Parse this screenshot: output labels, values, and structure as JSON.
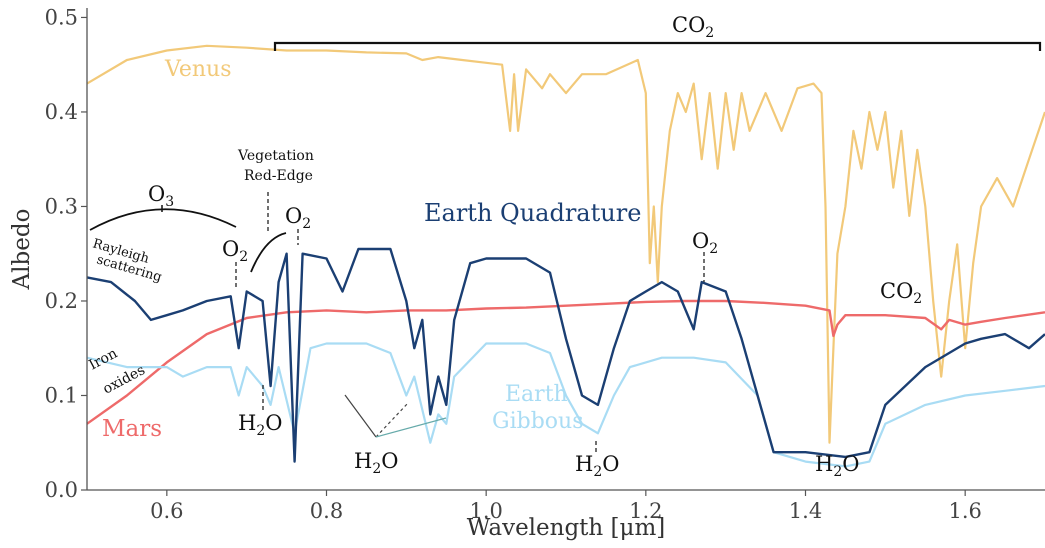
{
  "chart_data": {
    "type": "line",
    "title": "",
    "xlabel": "Wavelength [μm]",
    "ylabel": "Albedo",
    "xlim": [
      0.5,
      1.7
    ],
    "ylim": [
      0.0,
      0.51
    ],
    "x_ticks": [
      0.6,
      0.8,
      1.0,
      1.2,
      1.4,
      1.6
    ],
    "x_tick_labels": [
      "0.6",
      "0.8",
      "1.0",
      "1.2",
      "1.4",
      "1.6"
    ],
    "y_ticks": [
      0.0,
      0.1,
      0.2,
      0.3,
      0.4,
      0.5
    ],
    "y_tick_labels": [
      "0.0",
      "0.1",
      "0.2",
      "0.3",
      "0.4",
      "0.5"
    ],
    "grid": false,
    "series": [
      {
        "name": "Venus",
        "color": "#f2c979",
        "points": [
          [
            0.5,
            0.43
          ],
          [
            0.55,
            0.455
          ],
          [
            0.6,
            0.465
          ],
          [
            0.65,
            0.47
          ],
          [
            0.7,
            0.468
          ],
          [
            0.75,
            0.465
          ],
          [
            0.8,
            0.465
          ],
          [
            0.85,
            0.463
          ],
          [
            0.9,
            0.462
          ],
          [
            0.92,
            0.455
          ],
          [
            0.94,
            0.458
          ],
          [
            0.97,
            0.455
          ],
          [
            1.0,
            0.452
          ],
          [
            1.02,
            0.45
          ],
          [
            1.03,
            0.38
          ],
          [
            1.035,
            0.44
          ],
          [
            1.04,
            0.38
          ],
          [
            1.05,
            0.445
          ],
          [
            1.07,
            0.425
          ],
          [
            1.08,
            0.44
          ],
          [
            1.1,
            0.42
          ],
          [
            1.12,
            0.44
          ],
          [
            1.15,
            0.44
          ],
          [
            1.19,
            0.455
          ],
          [
            1.2,
            0.42
          ],
          [
            1.205,
            0.24
          ],
          [
            1.21,
            0.3
          ],
          [
            1.215,
            0.22
          ],
          [
            1.22,
            0.3
          ],
          [
            1.23,
            0.38
          ],
          [
            1.24,
            0.42
          ],
          [
            1.25,
            0.4
          ],
          [
            1.26,
            0.43
          ],
          [
            1.27,
            0.35
          ],
          [
            1.28,
            0.42
          ],
          [
            1.29,
            0.34
          ],
          [
            1.3,
            0.42
          ],
          [
            1.31,
            0.36
          ],
          [
            1.32,
            0.42
          ],
          [
            1.33,
            0.38
          ],
          [
            1.35,
            0.42
          ],
          [
            1.37,
            0.38
          ],
          [
            1.39,
            0.425
          ],
          [
            1.41,
            0.43
          ],
          [
            1.42,
            0.42
          ],
          [
            1.425,
            0.3
          ],
          [
            1.43,
            0.05
          ],
          [
            1.435,
            0.15
          ],
          [
            1.44,
            0.25
          ],
          [
            1.45,
            0.3
          ],
          [
            1.46,
            0.38
          ],
          [
            1.47,
            0.34
          ],
          [
            1.48,
            0.4
          ],
          [
            1.49,
            0.36
          ],
          [
            1.5,
            0.4
          ],
          [
            1.51,
            0.32
          ],
          [
            1.52,
            0.38
          ],
          [
            1.53,
            0.29
          ],
          [
            1.54,
            0.36
          ],
          [
            1.55,
            0.3
          ],
          [
            1.56,
            0.2
          ],
          [
            1.57,
            0.12
          ],
          [
            1.58,
            0.2
          ],
          [
            1.59,
            0.26
          ],
          [
            1.6,
            0.15
          ],
          [
            1.61,
            0.24
          ],
          [
            1.62,
            0.3
          ],
          [
            1.64,
            0.33
          ],
          [
            1.66,
            0.3
          ],
          [
            1.68,
            0.35
          ],
          [
            1.7,
            0.4
          ]
        ]
      },
      {
        "name": "Mars",
        "color": "#ee6a6a",
        "points": [
          [
            0.5,
            0.07
          ],
          [
            0.55,
            0.1
          ],
          [
            0.6,
            0.135
          ],
          [
            0.65,
            0.165
          ],
          [
            0.7,
            0.182
          ],
          [
            0.75,
            0.188
          ],
          [
            0.8,
            0.19
          ],
          [
            0.85,
            0.188
          ],
          [
            0.9,
            0.19
          ],
          [
            0.95,
            0.19
          ],
          [
            1.0,
            0.192
          ],
          [
            1.05,
            0.193
          ],
          [
            1.1,
            0.195
          ],
          [
            1.15,
            0.197
          ],
          [
            1.2,
            0.199
          ],
          [
            1.25,
            0.2
          ],
          [
            1.3,
            0.2
          ],
          [
            1.35,
            0.198
          ],
          [
            1.4,
            0.195
          ],
          [
            1.43,
            0.19
          ],
          [
            1.435,
            0.163
          ],
          [
            1.44,
            0.175
          ],
          [
            1.45,
            0.185
          ],
          [
            1.5,
            0.185
          ],
          [
            1.55,
            0.182
          ],
          [
            1.57,
            0.17
          ],
          [
            1.58,
            0.18
          ],
          [
            1.6,
            0.175
          ],
          [
            1.62,
            0.178
          ],
          [
            1.65,
            0.182
          ],
          [
            1.7,
            0.188
          ]
        ]
      },
      {
        "name": "Earth Gibbous",
        "color": "#a9dcf4",
        "points": [
          [
            0.5,
            0.14
          ],
          [
            0.55,
            0.13
          ],
          [
            0.6,
            0.13
          ],
          [
            0.62,
            0.12
          ],
          [
            0.65,
            0.13
          ],
          [
            0.68,
            0.13
          ],
          [
            0.69,
            0.1
          ],
          [
            0.7,
            0.13
          ],
          [
            0.72,
            0.11
          ],
          [
            0.73,
            0.09
          ],
          [
            0.74,
            0.13
          ],
          [
            0.76,
            0.06
          ],
          [
            0.78,
            0.15
          ],
          [
            0.8,
            0.155
          ],
          [
            0.82,
            0.155
          ],
          [
            0.85,
            0.155
          ],
          [
            0.88,
            0.145
          ],
          [
            0.9,
            0.1
          ],
          [
            0.91,
            0.12
          ],
          [
            0.93,
            0.05
          ],
          [
            0.94,
            0.08
          ],
          [
            0.95,
            0.07
          ],
          [
            0.96,
            0.12
          ],
          [
            1.0,
            0.155
          ],
          [
            1.05,
            0.155
          ],
          [
            1.08,
            0.145
          ],
          [
            1.1,
            0.1
          ],
          [
            1.12,
            0.07
          ],
          [
            1.14,
            0.06
          ],
          [
            1.16,
            0.1
          ],
          [
            1.18,
            0.13
          ],
          [
            1.22,
            0.14
          ],
          [
            1.26,
            0.14
          ],
          [
            1.3,
            0.135
          ],
          [
            1.34,
            0.1
          ],
          [
            1.36,
            0.04
          ],
          [
            1.4,
            0.03
          ],
          [
            1.45,
            0.025
          ],
          [
            1.48,
            0.03
          ],
          [
            1.5,
            0.07
          ],
          [
            1.55,
            0.09
          ],
          [
            1.6,
            0.1
          ],
          [
            1.65,
            0.105
          ],
          [
            1.7,
            0.11
          ]
        ]
      },
      {
        "name": "Earth Quadrature",
        "color": "#1b3f73",
        "points": [
          [
            0.5,
            0.225
          ],
          [
            0.53,
            0.22
          ],
          [
            0.56,
            0.2
          ],
          [
            0.58,
            0.18
          ],
          [
            0.6,
            0.185
          ],
          [
            0.62,
            0.19
          ],
          [
            0.65,
            0.2
          ],
          [
            0.68,
            0.205
          ],
          [
            0.69,
            0.15
          ],
          [
            0.7,
            0.21
          ],
          [
            0.72,
            0.2
          ],
          [
            0.73,
            0.11
          ],
          [
            0.74,
            0.22
          ],
          [
            0.75,
            0.25
          ],
          [
            0.76,
            0.03
          ],
          [
            0.77,
            0.25
          ],
          [
            0.8,
            0.245
          ],
          [
            0.82,
            0.21
          ],
          [
            0.84,
            0.255
          ],
          [
            0.88,
            0.255
          ],
          [
            0.9,
            0.2
          ],
          [
            0.91,
            0.15
          ],
          [
            0.92,
            0.18
          ],
          [
            0.93,
            0.08
          ],
          [
            0.94,
            0.12
          ],
          [
            0.95,
            0.09
          ],
          [
            0.96,
            0.18
          ],
          [
            0.98,
            0.24
          ],
          [
            1.0,
            0.245
          ],
          [
            1.05,
            0.245
          ],
          [
            1.08,
            0.23
          ],
          [
            1.1,
            0.16
          ],
          [
            1.12,
            0.1
          ],
          [
            1.14,
            0.09
          ],
          [
            1.16,
            0.15
          ],
          [
            1.18,
            0.2
          ],
          [
            1.2,
            0.21
          ],
          [
            1.22,
            0.22
          ],
          [
            1.24,
            0.21
          ],
          [
            1.26,
            0.17
          ],
          [
            1.27,
            0.22
          ],
          [
            1.3,
            0.21
          ],
          [
            1.32,
            0.16
          ],
          [
            1.34,
            0.1
          ],
          [
            1.36,
            0.04
          ],
          [
            1.4,
            0.04
          ],
          [
            1.45,
            0.035
          ],
          [
            1.48,
            0.04
          ],
          [
            1.5,
            0.09
          ],
          [
            1.55,
            0.13
          ],
          [
            1.6,
            0.155
          ],
          [
            1.62,
            0.16
          ],
          [
            1.65,
            0.165
          ],
          [
            1.68,
            0.15
          ],
          [
            1.7,
            0.165
          ]
        ]
      }
    ],
    "annotations": {
      "venus_label": "Venus",
      "earth_quadrature_label": "Earth Quadrature",
      "earth_gibbous_label_1": "Earth",
      "earth_gibbous_label_2": "Gibbous",
      "mars_label": "Mars",
      "co2_top": "CO",
      "co2_right": "CO",
      "co2_subscript": "2",
      "o3_main": "O",
      "o3_subscript": "3",
      "o2_main": "O",
      "o2_subscript": "2",
      "h2o_h": "H",
      "h2o_2": "2",
      "h2o_o": "O",
      "rayleigh_1": "Rayleigh",
      "rayleigh_2": "scattering",
      "iron_1": "Iron",
      "iron_2": "oxides",
      "vegetation_1": "Vegetation",
      "vegetation_2": "Red-Edge"
    }
  }
}
